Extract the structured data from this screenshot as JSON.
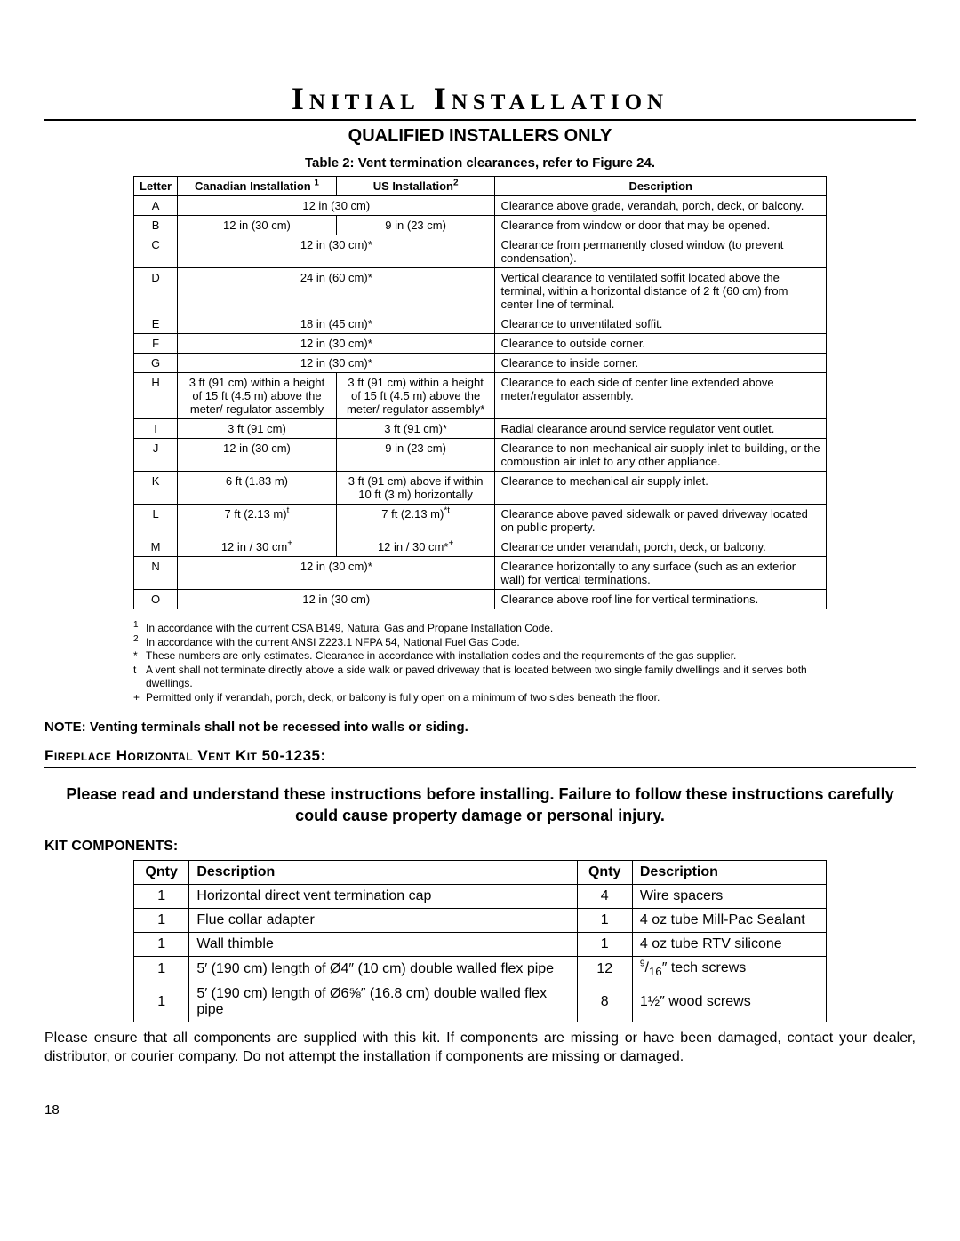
{
  "page_number": "18",
  "title": "Initial Installation",
  "subhead": "QUALIFIED INSTALLERS ONLY",
  "table1": {
    "caption": "Table 2: Vent termination clearances, refer to Figure 24.",
    "col_letter": "Letter",
    "col_can": "Canadian Installation",
    "col_can_sup": "1",
    "col_us": "US Installation",
    "col_us_sup": "2",
    "col_desc": "Description",
    "rows": [
      {
        "letter": "A",
        "merge": true,
        "val": "12 in (30 cm)",
        "desc": "Clearance above grade, verandah, porch, deck, or balcony."
      },
      {
        "letter": "B",
        "can": "12 in  (30 cm)",
        "us": "9 in  (23 cm)",
        "desc": "Clearance from window or door that may be opened."
      },
      {
        "letter": "C",
        "merge": true,
        "val": "12 in (30 cm)*",
        "desc": "Clearance from permanently closed window (to prevent condensation)."
      },
      {
        "letter": "D",
        "merge": true,
        "val": "24 in (60 cm)*",
        "desc": "Vertical clearance to ventilated soffit located above the terminal, within a horizontal distance of 2 ft (60 cm) from center line of terminal."
      },
      {
        "letter": "E",
        "merge": true,
        "val": "18 in (45 cm)*",
        "desc": "Clearance to unventilated soffit."
      },
      {
        "letter": "F",
        "merge": true,
        "val": "12 in (30 cm)*",
        "desc": "Clearance to outside corner."
      },
      {
        "letter": "G",
        "merge": true,
        "val": "12 in (30 cm)*",
        "desc": "Clearance to inside corner."
      },
      {
        "letter": "H",
        "can": "3 ft (91 cm) within a height of 15 ft (4.5 m) above the meter/ regulator assembly",
        "us": "3 ft (91 cm) within a height of 15 ft (4.5 m) above the meter/ regulator assembly*",
        "desc": "Clearance to each side of center line extended above meter/regulator assembly."
      },
      {
        "letter": "I",
        "can": "3 ft (91 cm)",
        "us": "3 ft (91 cm)*",
        "desc": "Radial clearance around service regulator vent outlet."
      },
      {
        "letter": "J",
        "can": "12 in (30 cm)",
        "us": "9 in (23 cm)",
        "desc": "Clearance to non-mechanical air supply inlet to building, or the combustion air inlet to any other appliance."
      },
      {
        "letter": "K",
        "can": "6 ft (1.83 m)",
        "us": "3 ft (91 cm) above if within 10 ft (3 m) horizontally",
        "desc": "Clearance to mechanical air supply inlet."
      },
      {
        "letter": "L",
        "can_html": "7 ft (2.13 m)<sup>t</sup>",
        "us_html": "7 ft (2.13 m)<sup>*t</sup>",
        "desc": "Clearance above paved sidewalk or paved driveway located on public property."
      },
      {
        "letter": "M",
        "can_html": "12 in / 30 cm<sup>+</sup>",
        "us_html": "12 in / 30 cm*<sup>+</sup>",
        "desc": "Clearance under verandah, porch, deck, or balcony."
      },
      {
        "letter": "N",
        "merge": true,
        "val": "12 in (30 cm)*",
        "desc": "Clearance horizontally to any surface (such as an exterior wall) for vertical terminations."
      },
      {
        "letter": "O",
        "merge": true,
        "val": "12 in (30 cm)",
        "desc": "Clearance above roof line for vertical terminations."
      }
    ]
  },
  "footnotes": [
    {
      "mark": "1",
      "sup": true,
      "text": "In accordance with the current CSA B149, Natural Gas and Propane Installation Code."
    },
    {
      "mark": "2",
      "sup": true,
      "text": "In accordance with the current ANSI Z223.1 NFPA 54, National Fuel Gas Code."
    },
    {
      "mark": "*",
      "sup": false,
      "text": "These numbers are only estimates. Clearance in accordance with installation codes and the requirements of the gas supplier."
    },
    {
      "mark": "t",
      "sup": false,
      "text": "A vent shall not terminate directly above a side walk or paved driveway that is located between two single family dwellings and it serves both dwellings."
    },
    {
      "mark": "+",
      "sup": false,
      "text": "Permitted only if verandah, porch, deck, or balcony is fully open on a minimum of two sides beneath the floor."
    }
  ],
  "note": "NOTE: Venting terminals shall not be recessed into walls or siding.",
  "section_title": "Fireplace Horizontal Vent Kit 50-1235:",
  "warn": "Please read and understand these instructions before installing. Failure to follow these instructions carefully could cause property damage or personal injury.",
  "kit_head": "KIT COMPONENTS:",
  "table2": {
    "col_qty": "Qnty",
    "col_desc": "Description",
    "rows": [
      {
        "q1": "1",
        "d1": "Horizontal direct vent termination cap",
        "q2": "4",
        "d2": "Wire spacers"
      },
      {
        "q1": "1",
        "d1": "Flue collar adapter",
        "q2": "1",
        "d2": "4 oz tube Mill-Pac Sealant"
      },
      {
        "q1": "1",
        "d1": "Wall thimble",
        "q2": "1",
        "d2": "4 oz tube RTV silicone"
      },
      {
        "q1": "1",
        "d1": "5′ (190 cm) length of Ø4″ (10 cm) double walled flex pipe",
        "q2": "12",
        "d2_html": "<sup>9</sup>/<sub>16</sub>″ tech screws"
      },
      {
        "q1": "1",
        "d1": "5′ (190 cm) length of Ø6⅝″ (16.8 cm) double walled flex pipe",
        "q2": "8",
        "d2": "1½″ wood screws"
      }
    ]
  },
  "para": "Please ensure that all components are supplied with this kit. If components are missing or have been damaged, contact your dealer, distributor, or courier company. Do not attempt the installation if components are missing or damaged."
}
